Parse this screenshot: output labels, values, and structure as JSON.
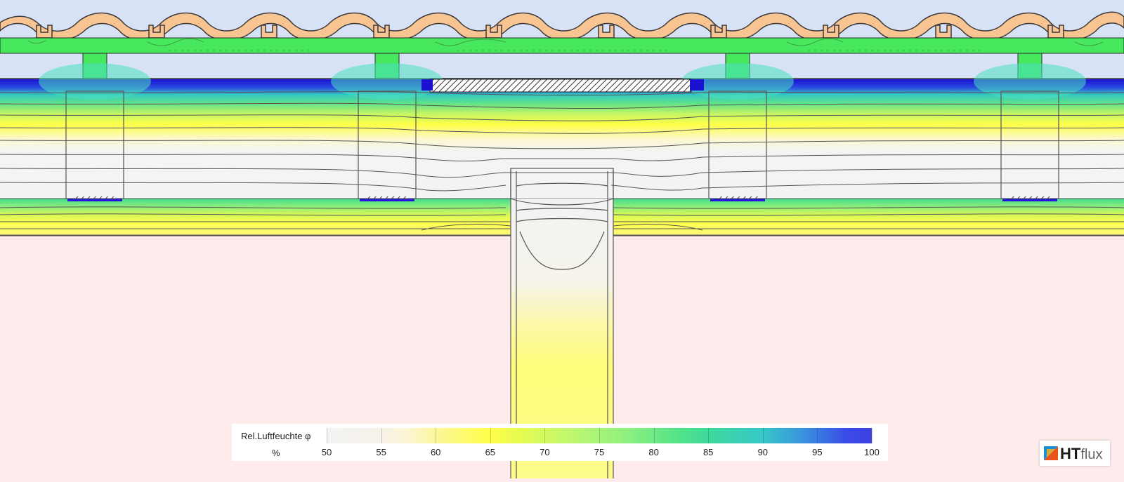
{
  "legend": {
    "title": "Rel.Luftfeuchte φ",
    "unit": "%",
    "ticks": [
      "50",
      "55",
      "60",
      "65",
      "70",
      "75",
      "80",
      "85",
      "90",
      "95",
      "100"
    ],
    "range": [
      50,
      100
    ]
  },
  "logo": {
    "bold": "HT",
    "light": "flux"
  },
  "colors": {
    "sky": "#d8e2f6",
    "tile": "#f8c492",
    "batten": "#47e85e",
    "interior": "#fdeceb",
    "dry": "#f3f3f3",
    "mid": "#ffff4a",
    "wet": "#2418d8"
  }
}
